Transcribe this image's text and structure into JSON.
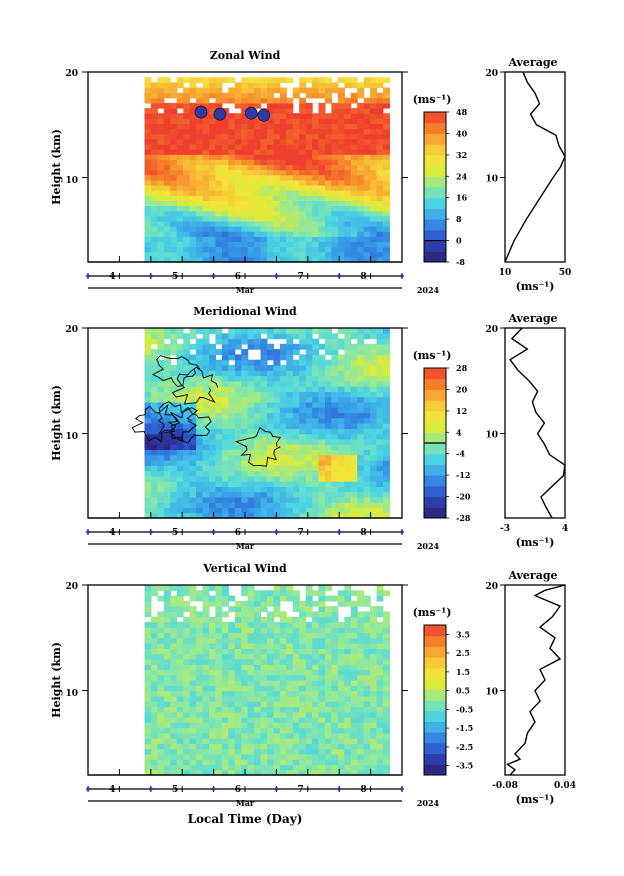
{
  "figure": {
    "xlabel": "Local Time (Day)",
    "month_label": "Mar",
    "year_label": "2024",
    "unit_label": "(ms⁻¹)",
    "side_title": "Average"
  },
  "chart_data": [
    {
      "type": "heatmap",
      "title": "Zonal Wind",
      "ylabel": "Height (km)",
      "xlim": [
        3.5,
        8.5
      ],
      "ylim": [
        2,
        20
      ],
      "x_data_range": [
        4.4,
        8.3
      ],
      "x_ticks": [
        4,
        5,
        6,
        7,
        8
      ],
      "y_ticks": [
        10,
        20
      ],
      "colorbar": {
        "range": [
          -8,
          48
        ],
        "labels": [
          -8,
          0,
          8,
          16,
          24,
          32,
          40,
          48
        ],
        "zero_line": 0
      },
      "profile": {
        "title": "Average",
        "xlim": [
          10,
          50
        ],
        "x_ticks": [
          10,
          50
        ],
        "heights": [
          2,
          4,
          6,
          8,
          10,
          11,
          12,
          13,
          14,
          15,
          16,
          17,
          18,
          19,
          20
        ],
        "values": [
          10,
          16,
          24,
          33,
          42,
          47,
          50,
          46,
          44,
          31,
          27,
          33,
          30,
          25,
          22
        ]
      }
    },
    {
      "type": "heatmap",
      "title": "Meridional Wind",
      "ylabel": "Height (km)",
      "xlim": [
        3.5,
        8.5
      ],
      "ylim": [
        2,
        20
      ],
      "x_data_range": [
        4.4,
        8.3
      ],
      "x_ticks": [
        4,
        5,
        6,
        7,
        8
      ],
      "y_ticks": [
        10,
        20
      ],
      "colorbar": {
        "range": [
          -28,
          28
        ],
        "labels": [
          -28,
          -20,
          -12,
          -4,
          4,
          12,
          20,
          28
        ],
        "zero_line": 0
      },
      "profile": {
        "title": "Average",
        "xlim": [
          -3,
          4
        ],
        "x_ticks": [
          -3,
          4
        ],
        "heights": [
          2,
          3,
          4,
          5,
          6,
          7,
          8,
          9,
          10,
          11,
          12,
          13,
          14,
          15,
          16,
          17,
          18,
          19,
          20
        ],
        "values": [
          2.5,
          1.8,
          1.2,
          2.5,
          3.8,
          4.0,
          2.2,
          1.6,
          0.8,
          1.6,
          0.6,
          0.2,
          0.8,
          -0.2,
          -1.5,
          -2.4,
          -0.4,
          -2.2,
          -1.0
        ]
      }
    },
    {
      "type": "heatmap",
      "title": "Vertical Wind",
      "ylabel": "Height (km)",
      "xlim": [
        3.5,
        8.5
      ],
      "ylim": [
        2,
        20
      ],
      "x_data_range": [
        4.4,
        8.3
      ],
      "x_ticks": [
        4,
        5,
        6,
        7,
        8
      ],
      "y_ticks": [
        10,
        20
      ],
      "colorbar": {
        "range": [
          -4,
          4
        ],
        "labels": [
          -3.5,
          -2.5,
          -1.5,
          -0.5,
          0.5,
          1.5,
          2.5,
          3.5
        ],
        "zero_line": null
      },
      "profile": {
        "title": "Average",
        "xlim": [
          -0.08,
          0.04
        ],
        "x_ticks": [
          -0.08,
          0.04
        ],
        "heights": [
          2,
          2.5,
          3,
          3.5,
          4,
          5,
          6,
          7,
          8,
          9,
          10,
          11,
          12,
          13,
          14,
          15,
          16,
          17,
          18,
          19,
          19.5,
          20
        ],
        "values": [
          -0.07,
          -0.06,
          -0.075,
          -0.05,
          -0.06,
          -0.04,
          -0.035,
          -0.02,
          -0.03,
          -0.01,
          -0.02,
          0.0,
          -0.01,
          0.03,
          0.01,
          0.02,
          -0.01,
          0.015,
          0.03,
          -0.02,
          0.0,
          0.04
        ]
      }
    }
  ],
  "colors": {
    "jet": [
      "#2a1f6e",
      "#2d3aa8",
      "#2f6ad8",
      "#3aa6e8",
      "#4fd8e0",
      "#8ee8a0",
      "#d8ec3c",
      "#f6e23a",
      "#f7b233",
      "#f57a2b",
      "#ee3e2e"
    ]
  }
}
